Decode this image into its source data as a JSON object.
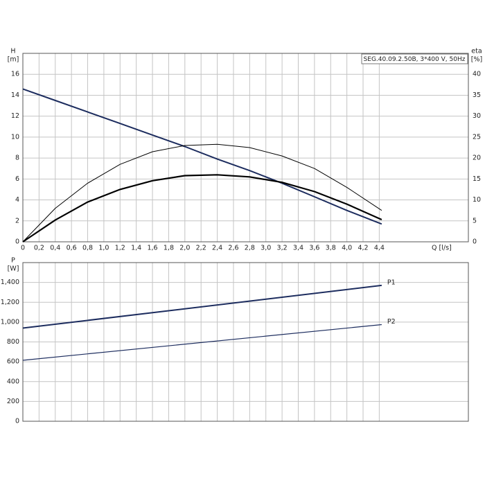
{
  "chart_data": [
    {
      "type": "line",
      "title": "SEG.40.09.2.50B, 3*400 V, 50Hz",
      "y_label": "H",
      "y_unit": "[m]",
      "y2_label": "eta",
      "y2_unit": "[%]",
      "x_label": "Q [l/s]",
      "x": [
        0,
        0.4,
        0.8,
        1.2,
        1.6,
        2.0,
        2.4,
        2.8,
        3.2,
        3.6,
        4.0,
        4.43
      ],
      "series": [
        {
          "name": "H",
          "color": "#1c2c5e",
          "width": 2,
          "values": [
            14.6,
            13.5,
            12.4,
            11.3,
            10.2,
            9.1,
            7.9,
            6.8,
            5.6,
            4.3,
            3.0,
            1.7
          ]
        },
        {
          "name": "eta",
          "color": "#000000",
          "width": 1,
          "axis": "y2",
          "values": [
            0,
            8,
            14,
            18.5,
            21.5,
            23,
            23.3,
            22.5,
            20.5,
            17.5,
            13,
            7.5
          ]
        },
        {
          "name": "eta",
          "color": "#000000",
          "width": 2.2,
          "axis": "y2",
          "values": [
            0,
            5.2,
            9.5,
            12.5,
            14.6,
            15.8,
            16.0,
            15.5,
            14.2,
            12.0,
            9.0,
            5.3
          ]
        }
      ],
      "xlim": [
        0,
        5.5
      ],
      "xticks": [
        0,
        {
          "value": 0.2,
          "label": "0,2"
        },
        {
          "value": 0.4,
          "label": "0,4"
        },
        {
          "value": 0.6,
          "label": "0,6"
        },
        {
          "value": 0.8,
          "label": "0,8"
        },
        {
          "value": 1.0,
          "label": "1,0"
        },
        {
          "value": 1.2,
          "label": "1,2"
        },
        {
          "value": 1.4,
          "label": "1,4"
        },
        {
          "value": 1.6,
          "label": "1,6"
        },
        {
          "value": 1.8,
          "label": "1,8"
        },
        {
          "value": 2.0,
          "label": "2,0"
        },
        {
          "value": 2.2,
          "label": "2,2"
        },
        {
          "value": 2.4,
          "label": "2,4"
        },
        {
          "value": 2.6,
          "label": "2,6"
        },
        {
          "value": 2.8,
          "label": "2,8"
        },
        {
          "value": 3.0,
          "label": "3,0"
        },
        {
          "value": 3.2,
          "label": "3,2"
        },
        {
          "value": 3.4,
          "label": "3,4"
        },
        {
          "value": 3.6,
          "label": "3,6"
        },
        {
          "value": 3.8,
          "label": "3,8"
        },
        {
          "value": 4.0,
          "label": "4,0"
        },
        {
          "value": 4.2,
          "label": "4,2"
        },
        {
          "value": 4.4,
          "label": "4,4"
        }
      ],
      "ylim": [
        0,
        18
      ],
      "yticks": [
        0,
        2,
        4,
        6,
        8,
        10,
        12,
        14,
        16
      ],
      "y2lim": [
        0,
        45
      ],
      "y2ticks": [
        0,
        5,
        10,
        15,
        20,
        25,
        30,
        35,
        40
      ],
      "grid": true
    },
    {
      "type": "line",
      "y_label": "P",
      "y_unit": "[W]",
      "x": [
        0,
        4.43
      ],
      "series": [
        {
          "name": "P1",
          "color": "#1c2c5e",
          "width": 2,
          "values": [
            940,
            1370
          ]
        },
        {
          "name": "P2",
          "color": "#1c2c5e",
          "width": 1.2,
          "values": [
            615,
            975
          ]
        }
      ],
      "xlim": [
        0,
        5.5
      ],
      "ylim": [
        0,
        1600
      ],
      "yticks": [
        0,
        200,
        400,
        600,
        800,
        {
          "value": 1000,
          "label": "1,000"
        },
        {
          "value": 1200,
          "label": "1,200"
        },
        {
          "value": 1400,
          "label": "1,400"
        }
      ],
      "grid": true
    }
  ]
}
